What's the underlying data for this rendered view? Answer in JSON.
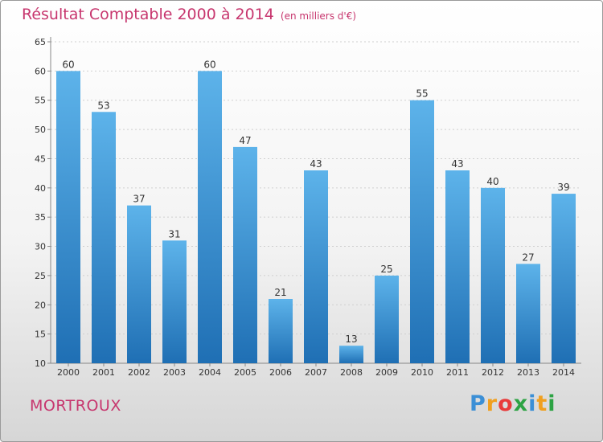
{
  "title": "Résultat Comptable 2000 à 2014",
  "unit": "(en milliers d'€)",
  "town": "MORTROUX",
  "logo": {
    "letters": [
      "P",
      "r",
      "o",
      "x",
      "i",
      "t",
      "i"
    ],
    "colors": [
      "#3b8fd6",
      "#f0a020",
      "#e83b3b",
      "#2da344",
      "#3b8fd6",
      "#f0a020",
      "#2da344"
    ]
  },
  "colors": {
    "bar_top": "#5db3ea",
    "bar_bottom": "#1f6fb4",
    "title": "#c7366e"
  },
  "chart_data": {
    "type": "bar",
    "title": "Résultat Comptable 2000 à 2014",
    "xlabel": "",
    "ylabel": "",
    "ylim": [
      10,
      65
    ],
    "yticks": [
      10,
      15,
      20,
      25,
      30,
      35,
      40,
      45,
      50,
      55,
      60,
      65
    ],
    "grid": true,
    "categories": [
      "2000",
      "2001",
      "2002",
      "2003",
      "2004",
      "2005",
      "2006",
      "2007",
      "2008",
      "2009",
      "2010",
      "2011",
      "2012",
      "2013",
      "2014"
    ],
    "values": [
      60,
      53,
      37,
      31,
      60,
      47,
      21,
      43,
      13,
      25,
      55,
      43,
      40,
      27,
      39
    ]
  }
}
